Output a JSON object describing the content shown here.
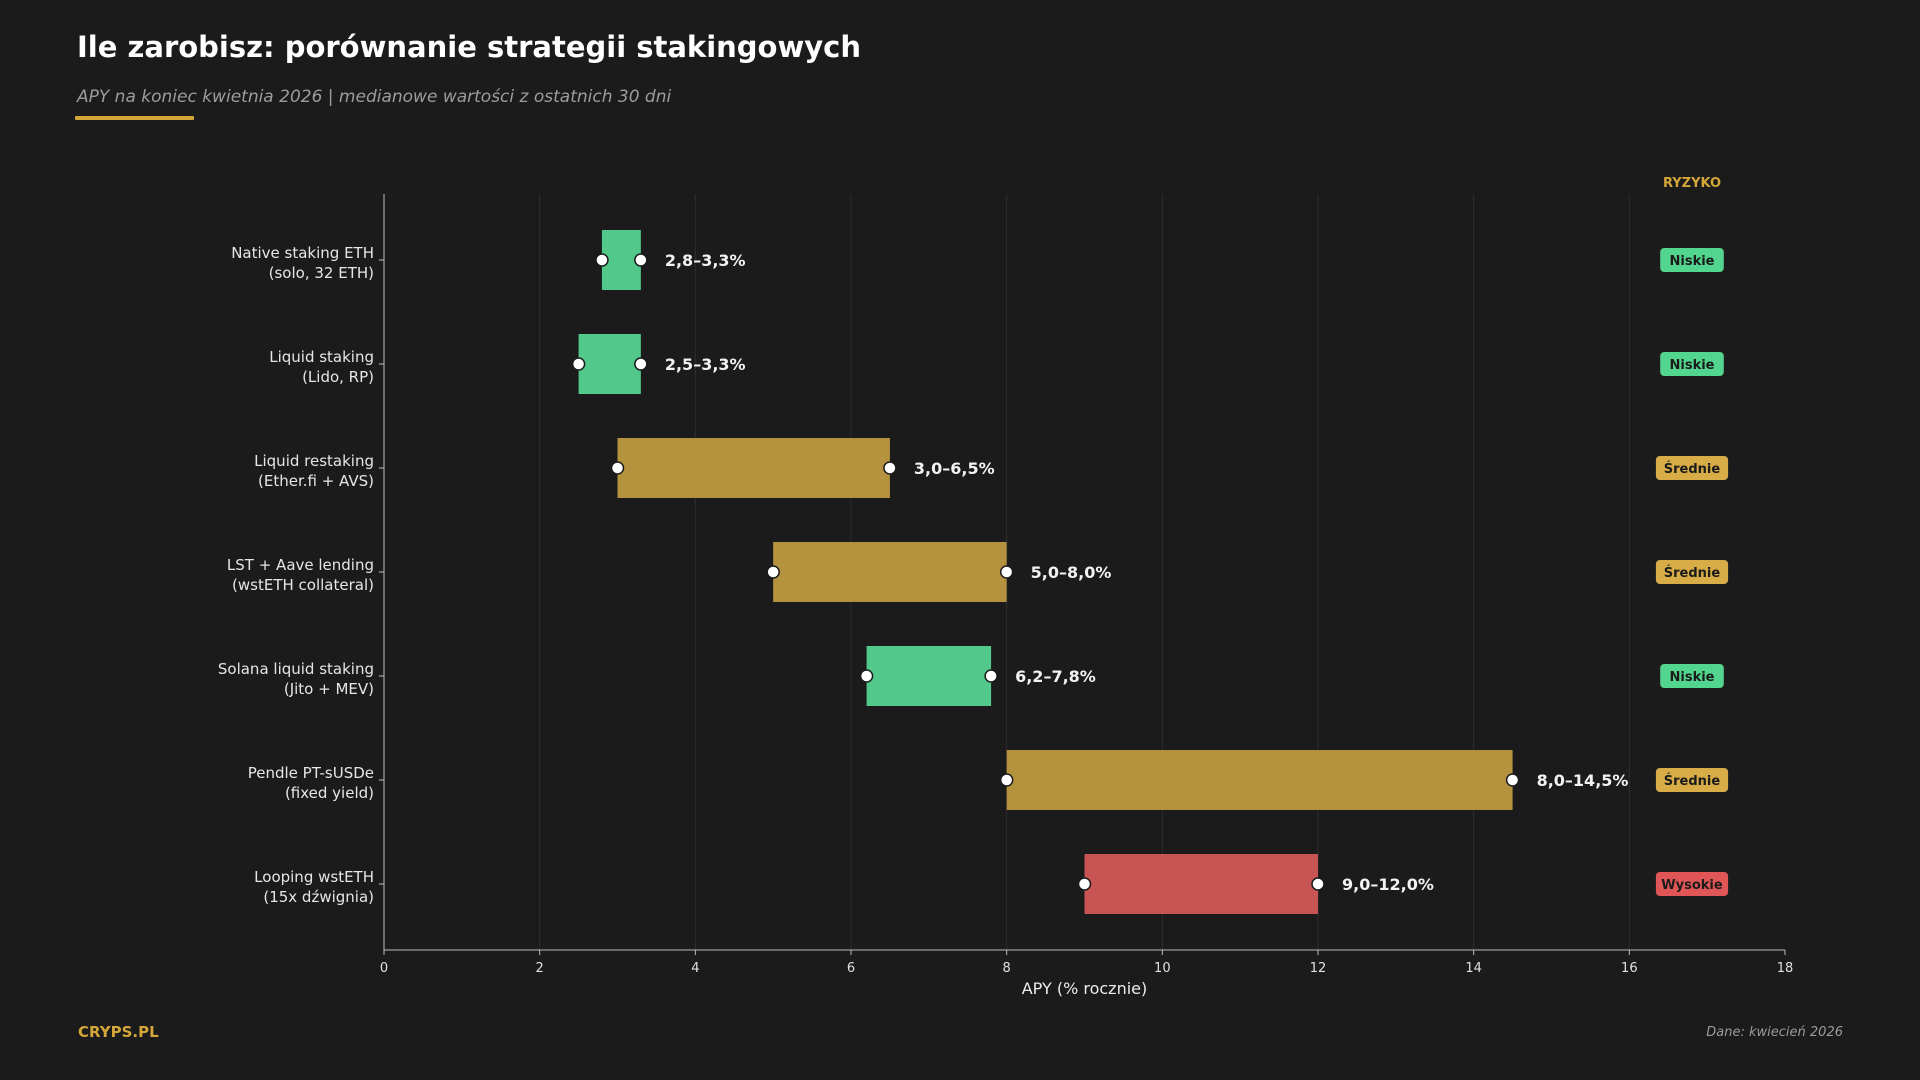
{
  "header": {
    "title": "Ile zarobisz: porównanie strategii stakingowych",
    "subtitle": "APY na koniec kwietnia 2026 | medianowe wartości z ostatnich 30 dni"
  },
  "footer": {
    "brand": "CRYPS.PL",
    "source": "Dane: kwiecień 2026"
  },
  "colors": {
    "background": "#1b1b1b",
    "accent": "#d4a63a",
    "low_risk": "#52c98a",
    "medium_risk": "#b5923e",
    "high_risk": "#c85454",
    "badge_low": "#52d68f",
    "badge_medium": "#d8ad48",
    "badge_high": "#e05656"
  },
  "chart_data": {
    "type": "range-bar",
    "orientation": "horizontal",
    "title": "Ile zarobisz: porównanie strategii stakingowych",
    "subtitle": "APY na koniec kwietnia 2026 | medianowe wartości z ostatnich 30 dni",
    "xlabel": "APY (% rocznie)",
    "xlim": [
      0,
      18
    ],
    "xticks": [
      0,
      2,
      4,
      6,
      8,
      10,
      12,
      14,
      16,
      18
    ],
    "grid": "vertical",
    "risk_header": "RYZYKO",
    "categories": [
      {
        "line1": "Native staking ETH",
        "line2": "(solo, 32 ETH)",
        "min": 2.8,
        "max": 3.3,
        "label": "2,8–3,3%",
        "risk": "Niskie",
        "risk_level": "low"
      },
      {
        "line1": "Liquid staking",
        "line2": "(Lido, RP)",
        "min": 2.5,
        "max": 3.3,
        "label": "2,5–3,3%",
        "risk": "Niskie",
        "risk_level": "low"
      },
      {
        "line1": "Liquid restaking",
        "line2": "(Ether.fi + AVS)",
        "min": 3.0,
        "max": 6.5,
        "label": "3,0–6,5%",
        "risk": "Średnie",
        "risk_level": "medium"
      },
      {
        "line1": "LST + Aave lending",
        "line2": "(wstETH collateral)",
        "min": 5.0,
        "max": 8.0,
        "label": "5,0–8,0%",
        "risk": "Średnie",
        "risk_level": "medium"
      },
      {
        "line1": "Solana liquid staking",
        "line2": "(Jito + MEV)",
        "min": 6.2,
        "max": 7.8,
        "label": "6,2–7,8%",
        "risk": "Niskie",
        "risk_level": "low"
      },
      {
        "line1": "Pendle PT-sUSDe",
        "line2": "(fixed yield)",
        "min": 8.0,
        "max": 14.5,
        "label": "8,0–14,5%",
        "risk": "Średnie",
        "risk_level": "medium"
      },
      {
        "line1": "Looping wstETH",
        "line2": "(15x dźwignia)",
        "min": 9.0,
        "max": 12.0,
        "label": "9,0–12,0%",
        "risk": "Wysokie",
        "risk_level": "high"
      }
    ]
  }
}
